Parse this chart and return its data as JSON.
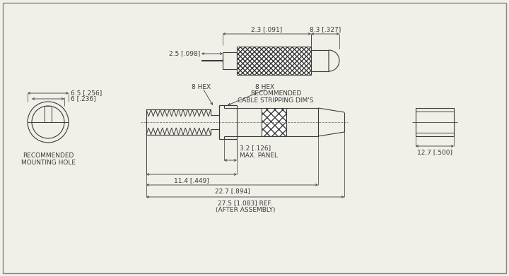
{
  "bg_color": "#f0efe8",
  "line_color": "#3a3a3a",
  "font_size": 6.5,
  "annotations": {
    "cable_strip_label": "RECOMMENDED\nCABLE STRIPPING DIM'S",
    "mount_hole_label": "RECOMMENDED\nMOUNTING HOLE",
    "dim_25": "2.5 [.098]",
    "dim_23": "2.3 [.091]",
    "dim_83": "8.3 [.327]",
    "dim_65": "6.5 [.256]",
    "dim_6": "6 [.236]",
    "dim_8hex1": "8 HEX",
    "dim_8hex2": "8 HEX",
    "dim_32": "3.2 [.126]\nMAX. PANEL",
    "dim_114": "11.4 [.449]",
    "dim_227": "22.7 [.894]",
    "dim_275": "27.5 [1.083] REF.\n(AFTER ASSEMBLY)",
    "dim_127": "12.7 [.500]"
  }
}
